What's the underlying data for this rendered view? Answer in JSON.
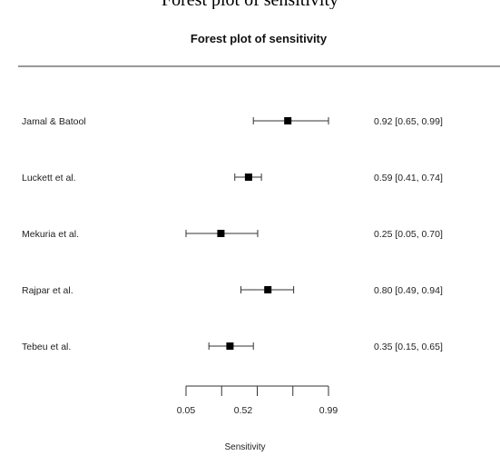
{
  "clipped_heading": "Forest plot of sensitivity",
  "chart_data": {
    "type": "forest",
    "title": "Forest plot of sensitivity",
    "xlabel": "Sensitivity",
    "x_scale": "logit",
    "xticks": [
      0.05,
      0.52,
      0.99
    ],
    "xlim": [
      0.05,
      0.99
    ],
    "studies": [
      {
        "label": "Jamal & Batool",
        "estimate": 0.92,
        "ci_low": 0.65,
        "ci_high": 0.99,
        "text": "0.92 [0.65, 0.99]"
      },
      {
        "label": "Luckett et al.",
        "estimate": 0.59,
        "ci_low": 0.41,
        "ci_high": 0.74,
        "text": "0.59 [0.41, 0.74]"
      },
      {
        "label": "Mekuria et al.",
        "estimate": 0.25,
        "ci_low": 0.05,
        "ci_high": 0.7,
        "text": "0.25 [0.05, 0.70]"
      },
      {
        "label": "Rajpar et al.",
        "estimate": 0.8,
        "ci_low": 0.49,
        "ci_high": 0.94,
        "text": "0.80 [0.49, 0.94]"
      },
      {
        "label": "Tebeu et al.",
        "estimate": 0.35,
        "ci_low": 0.15,
        "ci_high": 0.65,
        "text": "0.35 [0.15, 0.65]"
      }
    ]
  }
}
